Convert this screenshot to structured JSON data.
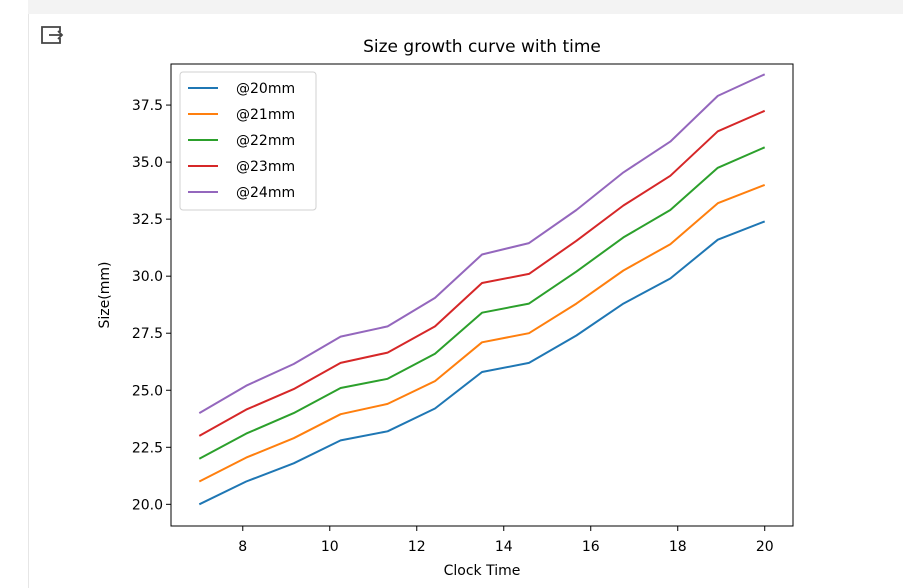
{
  "toolbar": {
    "output_icon": "exit-to-app-icon"
  },
  "chart_data": {
    "type": "line",
    "title": "Size growth curve with time",
    "xlabel": "Clock Time",
    "ylabel": "Size(mm)",
    "xlim": [
      6.35,
      20.65
    ],
    "ylim": [
      19.05,
      39.3
    ],
    "xticks": [
      8,
      10,
      12,
      14,
      16,
      18,
      20
    ],
    "yticks": [
      20.0,
      22.5,
      25.0,
      27.5,
      30.0,
      32.5,
      35.0,
      37.5
    ],
    "xtick_labels": [
      "8",
      "10",
      "12",
      "14",
      "16",
      "18",
      "20"
    ],
    "ytick_labels": [
      "20.0",
      "22.5",
      "25.0",
      "27.5",
      "30.0",
      "32.5",
      "35.0",
      "37.5"
    ],
    "grid": false,
    "legend_position": "top-left",
    "x": [
      7.0,
      8.08,
      9.17,
      10.25,
      11.33,
      12.42,
      13.5,
      14.58,
      15.67,
      16.75,
      17.83,
      18.92,
      20.0
    ],
    "series": [
      {
        "name": "@20mm",
        "color": "#1f77b4",
        "values": [
          20.0,
          21.0,
          21.8,
          22.8,
          23.2,
          24.2,
          25.8,
          26.2,
          27.4,
          28.8,
          29.9,
          31.6,
          32.4
        ]
      },
      {
        "name": "@21mm",
        "color": "#ff7f0e",
        "values": [
          21.0,
          22.05,
          22.9,
          23.95,
          24.4,
          25.4,
          27.1,
          27.5,
          28.8,
          30.25,
          31.4,
          33.2,
          34.0
        ]
      },
      {
        "name": "@22mm",
        "color": "#2ca02c",
        "values": [
          22.0,
          23.1,
          24.0,
          25.1,
          25.5,
          26.6,
          28.4,
          28.8,
          30.2,
          31.7,
          32.9,
          34.75,
          35.65
        ]
      },
      {
        "name": "@23mm",
        "color": "#d62728",
        "values": [
          23.0,
          24.15,
          25.05,
          26.2,
          26.65,
          27.8,
          29.7,
          30.1,
          31.55,
          33.1,
          34.4,
          36.35,
          37.25
        ]
      },
      {
        "name": "@24mm",
        "color": "#9467bd",
        "values": [
          24.0,
          25.2,
          26.15,
          27.35,
          27.8,
          29.05,
          30.95,
          31.45,
          32.9,
          34.55,
          35.9,
          37.9,
          38.85
        ]
      }
    ]
  }
}
